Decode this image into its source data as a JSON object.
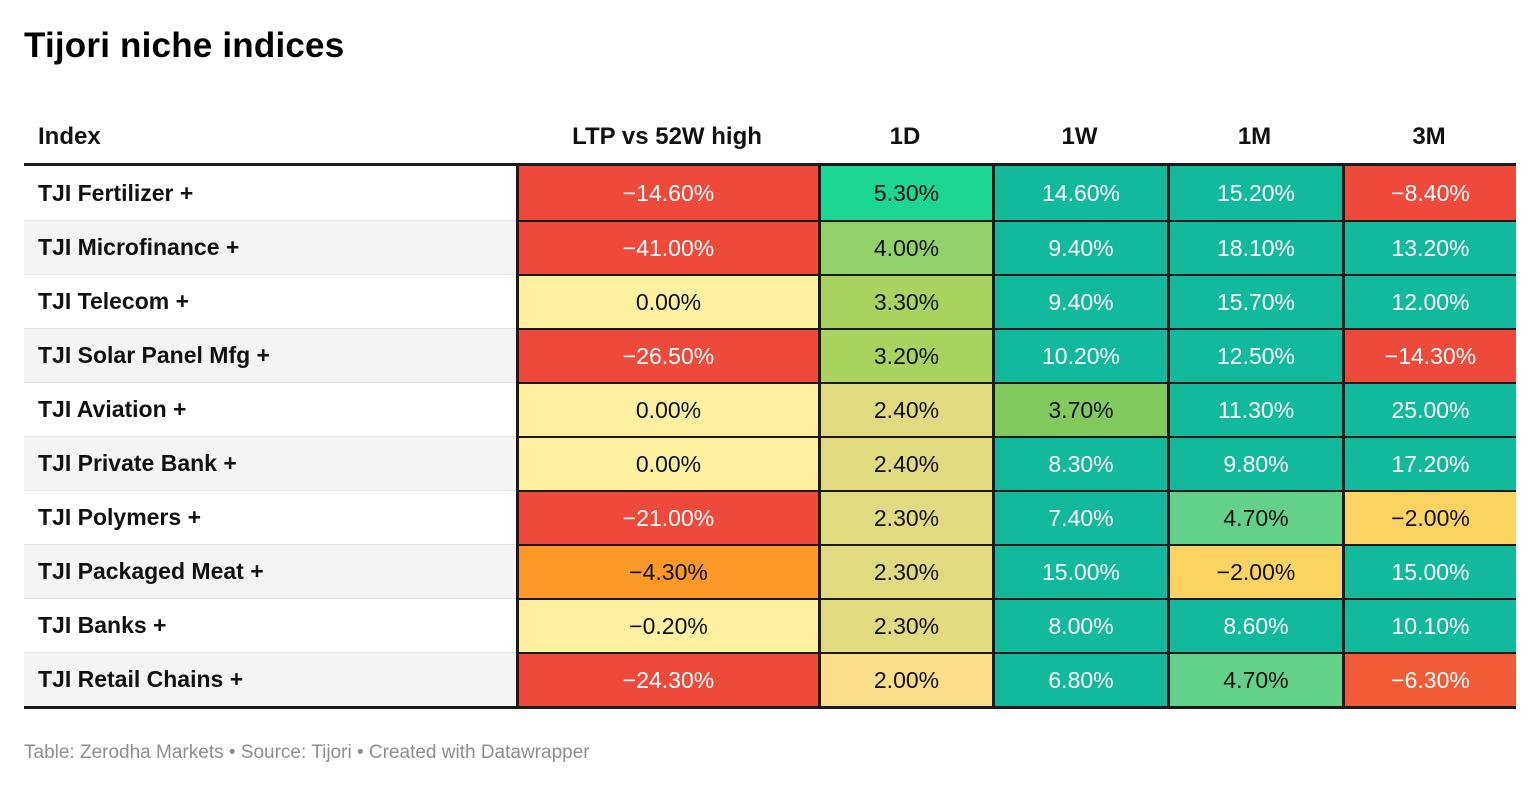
{
  "title": "Tijori niche indices",
  "footer": "Table: Zerodha Markets • Source: Tijori • Created with Datawrapper",
  "colors": {
    "strong_negative_red": "#ee4a3b",
    "orange_red": "#f15c38",
    "orange": "#fb9827",
    "amber": "#fbd360",
    "light_amber": "#fbdd8b",
    "pale_yellow": "#fdf0a0",
    "olive_yellow": "#e0da80",
    "yellow_green": "#a9d25e",
    "light_green": "#90d169",
    "green": "#80ca5e",
    "medium_green": "#63d189",
    "bright_emerald": "#1cd694",
    "teal": "#12b99b",
    "border_dark": "#1a1a1a",
    "row_stripe": "#f4f4f4"
  },
  "table": {
    "columns": [
      {
        "label": "Index"
      },
      {
        "label": "LTP vs 52W high"
      },
      {
        "label": "1D"
      },
      {
        "label": "1W"
      },
      {
        "label": "1M"
      },
      {
        "label": "3M"
      }
    ],
    "rows": [
      {
        "index": "TJI Fertilizer +",
        "cells": [
          {
            "text": "−14.60%",
            "bg": "#ee4a3b",
            "fg": "#ffffff"
          },
          {
            "text": "5.30%",
            "bg": "#1cd694",
            "fg": "#111111"
          },
          {
            "text": "14.60%",
            "bg": "#12b99b",
            "fg": "#ffffff"
          },
          {
            "text": "15.20%",
            "bg": "#12b99b",
            "fg": "#ffffff"
          },
          {
            "text": "−8.40%",
            "bg": "#ee4a3b",
            "fg": "#ffffff"
          }
        ]
      },
      {
        "index": "TJI Microfinance +",
        "cells": [
          {
            "text": "−41.00%",
            "bg": "#ee4a3b",
            "fg": "#ffffff"
          },
          {
            "text": "4.00%",
            "bg": "#90d169",
            "fg": "#111111"
          },
          {
            "text": "9.40%",
            "bg": "#12b99b",
            "fg": "#ffffff"
          },
          {
            "text": "18.10%",
            "bg": "#12b99b",
            "fg": "#ffffff"
          },
          {
            "text": "13.20%",
            "bg": "#12b99b",
            "fg": "#ffffff"
          }
        ]
      },
      {
        "index": "TJI Telecom +",
        "cells": [
          {
            "text": "0.00%",
            "bg": "#fdf0a0",
            "fg": "#111111"
          },
          {
            "text": "3.30%",
            "bg": "#a9d25e",
            "fg": "#111111"
          },
          {
            "text": "9.40%",
            "bg": "#12b99b",
            "fg": "#ffffff"
          },
          {
            "text": "15.70%",
            "bg": "#12b99b",
            "fg": "#ffffff"
          },
          {
            "text": "12.00%",
            "bg": "#12b99b",
            "fg": "#ffffff"
          }
        ]
      },
      {
        "index": "TJI Solar Panel Mfg +",
        "cells": [
          {
            "text": "−26.50%",
            "bg": "#ee4a3b",
            "fg": "#ffffff"
          },
          {
            "text": "3.20%",
            "bg": "#a9d25e",
            "fg": "#111111"
          },
          {
            "text": "10.20%",
            "bg": "#12b99b",
            "fg": "#ffffff"
          },
          {
            "text": "12.50%",
            "bg": "#12b99b",
            "fg": "#ffffff"
          },
          {
            "text": "−14.30%",
            "bg": "#ee4a3b",
            "fg": "#ffffff"
          }
        ]
      },
      {
        "index": "TJI Aviation +",
        "cells": [
          {
            "text": "0.00%",
            "bg": "#fdf0a0",
            "fg": "#111111"
          },
          {
            "text": "2.40%",
            "bg": "#e0da80",
            "fg": "#111111"
          },
          {
            "text": "3.70%",
            "bg": "#80ca5e",
            "fg": "#111111"
          },
          {
            "text": "11.30%",
            "bg": "#12b99b",
            "fg": "#ffffff"
          },
          {
            "text": "25.00%",
            "bg": "#12b99b",
            "fg": "#ffffff"
          }
        ]
      },
      {
        "index": "TJI Private Bank +",
        "cells": [
          {
            "text": "0.00%",
            "bg": "#fdf0a0",
            "fg": "#111111"
          },
          {
            "text": "2.40%",
            "bg": "#e0da80",
            "fg": "#111111"
          },
          {
            "text": "8.30%",
            "bg": "#12b99b",
            "fg": "#ffffff"
          },
          {
            "text": "9.80%",
            "bg": "#12b99b",
            "fg": "#ffffff"
          },
          {
            "text": "17.20%",
            "bg": "#12b99b",
            "fg": "#ffffff"
          }
        ]
      },
      {
        "index": "TJI Polymers +",
        "cells": [
          {
            "text": "−21.00%",
            "bg": "#ee4a3b",
            "fg": "#ffffff"
          },
          {
            "text": "2.30%",
            "bg": "#e0da80",
            "fg": "#111111"
          },
          {
            "text": "7.40%",
            "bg": "#12b99b",
            "fg": "#ffffff"
          },
          {
            "text": "4.70%",
            "bg": "#63d189",
            "fg": "#111111"
          },
          {
            "text": "−2.00%",
            "bg": "#fbd360",
            "fg": "#111111"
          }
        ]
      },
      {
        "index": "TJI Packaged Meat +",
        "cells": [
          {
            "text": "−4.30%",
            "bg": "#fb9827",
            "fg": "#111111"
          },
          {
            "text": "2.30%",
            "bg": "#e0da80",
            "fg": "#111111"
          },
          {
            "text": "15.00%",
            "bg": "#12b99b",
            "fg": "#ffffff"
          },
          {
            "text": "−2.00%",
            "bg": "#fbd360",
            "fg": "#111111"
          },
          {
            "text": "15.00%",
            "bg": "#12b99b",
            "fg": "#ffffff"
          }
        ]
      },
      {
        "index": "TJI Banks +",
        "cells": [
          {
            "text": "−0.20%",
            "bg": "#fdf0a0",
            "fg": "#111111"
          },
          {
            "text": "2.30%",
            "bg": "#e0da80",
            "fg": "#111111"
          },
          {
            "text": "8.00%",
            "bg": "#12b99b",
            "fg": "#ffffff"
          },
          {
            "text": "8.60%",
            "bg": "#12b99b",
            "fg": "#ffffff"
          },
          {
            "text": "10.10%",
            "bg": "#12b99b",
            "fg": "#ffffff"
          }
        ]
      },
      {
        "index": "TJI Retail Chains +",
        "cells": [
          {
            "text": "−24.30%",
            "bg": "#ee4a3b",
            "fg": "#ffffff"
          },
          {
            "text": "2.00%",
            "bg": "#fbdd8b",
            "fg": "#111111"
          },
          {
            "text": "6.80%",
            "bg": "#12b99b",
            "fg": "#ffffff"
          },
          {
            "text": "4.70%",
            "bg": "#63d189",
            "fg": "#111111"
          },
          {
            "text": "−6.30%",
            "bg": "#f15c38",
            "fg": "#ffffff"
          }
        ]
      }
    ]
  },
  "chart_data": {
    "type": "table",
    "title": "Tijori niche indices",
    "columns": [
      "Index",
      "LTP vs 52W high",
      "1D",
      "1W",
      "1M",
      "3M"
    ],
    "rows": [
      [
        "TJI Fertilizer +",
        -14.6,
        5.3,
        14.6,
        15.2,
        -8.4
      ],
      [
        "TJI Microfinance +",
        -41.0,
        4.0,
        9.4,
        18.1,
        13.2
      ],
      [
        "TJI Telecom +",
        0.0,
        3.3,
        9.4,
        15.7,
        12.0
      ],
      [
        "TJI Solar Panel Mfg +",
        -26.5,
        3.2,
        10.2,
        12.5,
        -14.3
      ],
      [
        "TJI Aviation +",
        0.0,
        2.4,
        3.7,
        11.3,
        25.0
      ],
      [
        "TJI Private Bank +",
        0.0,
        2.4,
        8.3,
        9.8,
        17.2
      ],
      [
        "TJI Polymers +",
        -21.0,
        2.3,
        7.4,
        4.7,
        -2.0
      ],
      [
        "TJI Packaged Meat +",
        -4.3,
        2.3,
        15.0,
        -2.0,
        15.0
      ],
      [
        "TJI Banks +",
        -0.2,
        2.3,
        8.0,
        8.6,
        10.1
      ],
      [
        "TJI Retail Chains +",
        -24.3,
        2.0,
        6.8,
        4.7,
        -6.3
      ]
    ],
    "units": "percent",
    "style_note": "heatmap cells on red-yellow-green diverging scale",
    "footer": "Table: Zerodha Markets • Source: Tijori • Created with Datawrapper"
  }
}
